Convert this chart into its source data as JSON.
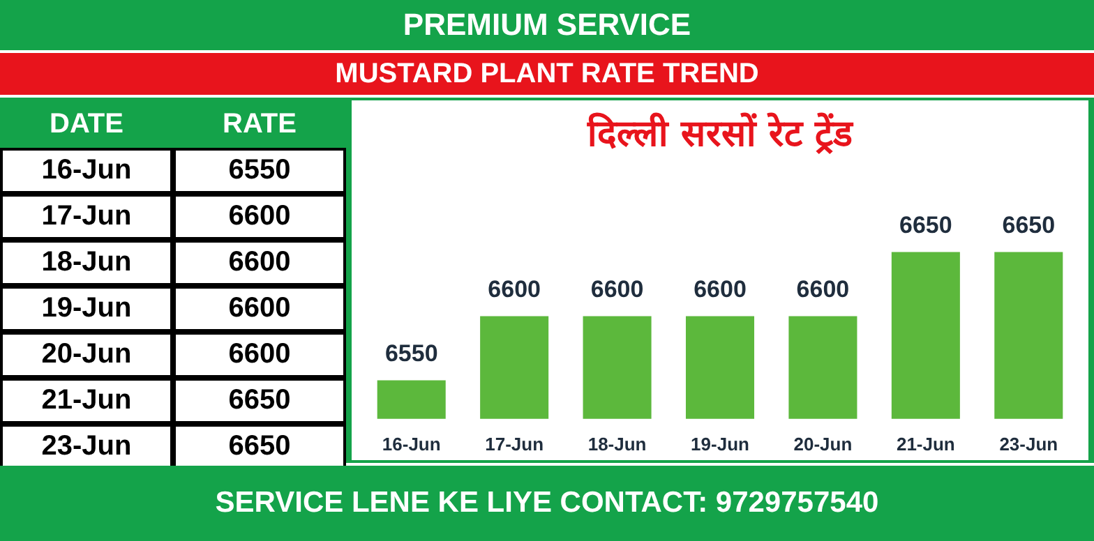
{
  "chart_data": [
    {
      "type": "other",
      "title": "PREMIUM SERVICE",
      "subtitle": "MUSTARD PLANT RATE TREND",
      "annotations": [
        "DATE",
        "RATE",
        "SERVICE LENE KE LIYE CONTACT: 9729757540"
      ],
      "categories": [
        "16-Jun",
        "17-Jun",
        "18-Jun",
        "19-Jun",
        "20-Jun",
        "21-Jun",
        "23-Jun"
      ],
      "values": [
        6550,
        6600,
        6600,
        6600,
        6600,
        6650,
        6650
      ],
      "data_labels": true
    },
    {
      "type": "bar",
      "title": "दिल्ली सरसों रेट ट्रेंड",
      "categories": [
        "16-Jun",
        "17-Jun",
        "18-Jun",
        "19-Jun",
        "20-Jun",
        "21-Jun",
        "23-Jun"
      ],
      "values": [
        6550,
        6600,
        6600,
        6600,
        6600,
        6650,
        6650
      ],
      "color": "#5cb83c",
      "tick_labels": "x",
      "data_labels": true
    }
  ]
}
